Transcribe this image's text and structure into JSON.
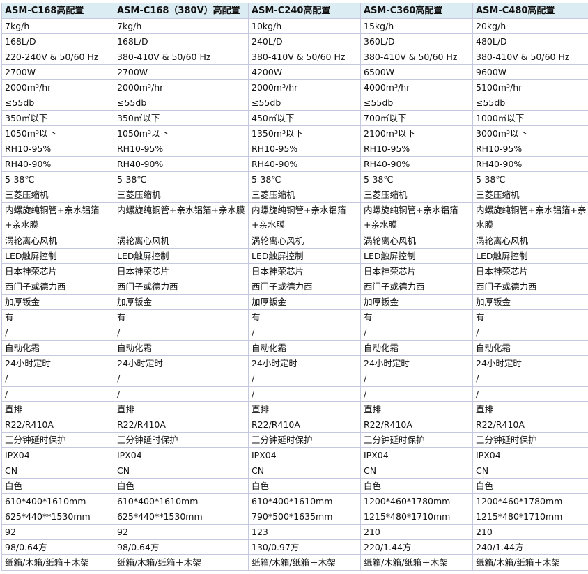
{
  "table": {
    "headers": [
      "ASM-C168高配置",
      "ASM-C168（380V）高配置",
      "ASM-C240高配置",
      "ASM-C360高配置",
      "ASM-C480高配置"
    ],
    "rows": [
      [
        "7kg/h",
        "7kg/h",
        "10kg/h",
        "15kg/h",
        "20kg/h"
      ],
      [
        "168L/D",
        "168L/D",
        "240L/D",
        "360L/D",
        "480L/D"
      ],
      [
        "220-240V & 50/60 Hz",
        "380-410V & 50/60 Hz",
        "380-410V & 50/60 Hz",
        "380-410V & 50/60 Hz",
        "380-410V & 50/60 Hz"
      ],
      [
        "2700W",
        "2700W",
        "4200W",
        "6500W",
        "9600W"
      ],
      [
        "2000m³/hr",
        "2000m³/hr",
        "2000m³/hr",
        "4000m³/hr",
        "5100m³/hr"
      ],
      [
        "≤55db",
        "≤55db",
        "≤55db",
        "≤55db",
        "≤55db"
      ],
      [
        "350㎡以下",
        "350㎡以下",
        "450㎡以下",
        "700㎡以下",
        "1000㎡以下"
      ],
      [
        "1050m³以下",
        "1050m³以下",
        "1350m³以下",
        "2100m³以下",
        "3000m³以下"
      ],
      [
        "RH10-95%",
        "RH10-95%",
        "RH10-95%",
        "RH10-95%",
        "RH10-95%"
      ],
      [
        "RH40-90%",
        "RH40-90%",
        "RH40-90%",
        "RH40-90%",
        "RH40-90%"
      ],
      [
        "5-38℃",
        "5-38℃",
        "5-38℃",
        "5-38℃",
        "5-38℃"
      ],
      [
        "三菱压缩机",
        "三菱压缩机",
        "三菱压缩机",
        "三菱压缩机",
        "三菱压缩机"
      ],
      [
        "内螺旋纯铜管+亲水铝箔+亲水膜",
        "内螺旋纯铜管+亲水铝箔+亲水膜",
        "内螺旋纯铜管+亲水铝箔+亲水膜",
        "内螺旋纯铜管+亲水铝箔+亲水膜",
        "内螺旋纯铜管+亲水铝箔+亲水膜"
      ],
      [
        "涡轮离心风机",
        "涡轮离心风机",
        "涡轮离心风机",
        "涡轮离心风机",
        "涡轮离心风机"
      ],
      [
        "LED触屏控制",
        "LED触屏控制",
        "LED触屏控制",
        "LED触屏控制",
        "LED触屏控制"
      ],
      [
        "日本神荣芯片",
        "日本神荣芯片",
        "日本神荣芯片",
        "日本神荣芯片",
        "日本神荣芯片"
      ],
      [
        "西门子或德力西",
        "西门子或德力西",
        "西门子或德力西",
        "西门子或德力西",
        "西门子或德力西"
      ],
      [
        "加厚钣金",
        "加厚钣金",
        "加厚钣金",
        "加厚钣金",
        "加厚钣金"
      ],
      [
        "有",
        "有",
        "有",
        "有",
        "有"
      ],
      [
        "/",
        "/",
        "/",
        "/",
        "/"
      ],
      [
        "自动化霜",
        "自动化霜",
        "自动化霜",
        "自动化霜",
        "自动化霜"
      ],
      [
        "24小时定时",
        "24小时定时",
        "24小时定时",
        "24小时定时",
        "24小时定时"
      ],
      [
        "/",
        "/",
        "/",
        "/",
        "/"
      ],
      [
        "/",
        "/",
        "/",
        "/",
        "/"
      ],
      [
        "直排",
        "直排",
        "直排",
        "直排",
        "直排"
      ],
      [
        "R22/R410A",
        "R22/R410A",
        "R22/R410A",
        "R22/R410A",
        "R22/R410A"
      ],
      [
        "三分钟延时保护",
        "三分钟延时保护",
        "三分钟延时保护",
        "三分钟延时保护",
        "三分钟延时保护"
      ],
      [
        "IPX04",
        "IPX04",
        "IPX04",
        "IPX04",
        "IPX04"
      ],
      [
        "CN",
        "CN",
        "CN",
        "CN",
        "CN"
      ],
      [
        "白色",
        "白色",
        "白色",
        "白色",
        "白色"
      ],
      [
        "610*400*1610mm",
        "610*400*1610mm",
        "610*400*1610mm",
        "1200*460*1780mm",
        "1200*460*1780mm"
      ],
      [
        "625*440**1530mm",
        "625*440**1530mm",
        "790*500*1635mm",
        "1215*480*1710mm",
        "1215*480*1710mm"
      ],
      [
        "92",
        "92",
        "123",
        "210",
        "210"
      ],
      [
        "98/0.64方",
        "98/0.64方",
        "130/0.97方",
        "220/1.44方",
        "240/1.44方"
      ],
      [
        "纸箱/木箱/纸箱＋木架",
        "纸箱/木箱/纸箱＋木架",
        "纸箱/木箱/纸箱＋木架",
        "纸箱/木箱/纸箱＋木架",
        "纸箱/木箱/纸箱＋木架"
      ]
    ]
  },
  "colors": {
    "header_bg": "#dcecf3",
    "grid": "#c5c8df"
  }
}
